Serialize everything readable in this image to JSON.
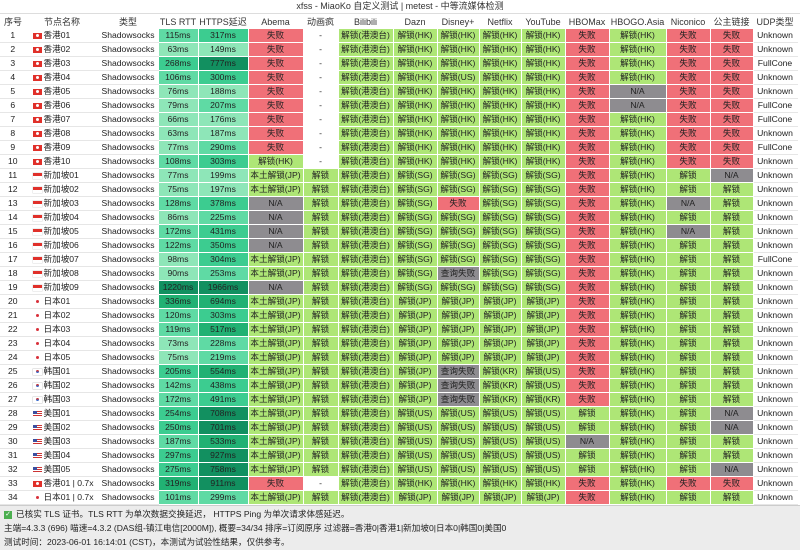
{
  "window_title": "xfss - MiaoKo 自定义测试 | metest - 中等流媒体检测",
  "colors": {
    "unlock": "#aee676",
    "fail": "#f07078",
    "na": "#8e8c90",
    "none": "#ffffff"
  },
  "columns": [
    "序号",
    "节点名称",
    "类型",
    "TLS RTT",
    "HTTPS延迟",
    "Abema",
    "动画疯",
    "Bilibili",
    "Dazn",
    "Disney+",
    "Netflix",
    "YouTube",
    "HBOMax",
    "HBOGO.Asia",
    "Niconico",
    "公主链接",
    "UDP类型"
  ],
  "rows": [
    [
      "1",
      "hk",
      "香港01",
      "Shadowsocks",
      "115ms",
      "317ms",
      "失败",
      "-",
      "解锁(港澳台)",
      "解锁(HK)",
      "解锁(HK)",
      "解锁(HK)",
      "解锁(HK)",
      "失败",
      "解锁(HK)",
      "失败",
      "失败",
      "Unknown"
    ],
    [
      "2",
      "hk",
      "香港02",
      "Shadowsocks",
      "63ms",
      "149ms",
      "失败",
      "-",
      "解锁(港澳台)",
      "解锁(HK)",
      "解锁(HK)",
      "解锁(HK)",
      "解锁(HK)",
      "失败",
      "解锁(HK)",
      "失败",
      "失败",
      "Unknown"
    ],
    [
      "3",
      "hk",
      "香港03",
      "Shadowsocks",
      "268ms",
      "777ms",
      "失败",
      "-",
      "解锁(港澳台)",
      "解锁(HK)",
      "解锁(HK)",
      "解锁(HK)",
      "解锁(HK)",
      "失败",
      "解锁(HK)",
      "失败",
      "失败",
      "FullCone"
    ],
    [
      "4",
      "hk",
      "香港04",
      "Shadowsocks",
      "106ms",
      "300ms",
      "失败",
      "-",
      "解锁(港澳台)",
      "解锁(HK)",
      "解锁(US)",
      "解锁(HK)",
      "解锁(HK)",
      "失败",
      "解锁(HK)",
      "失败",
      "失败",
      "Unknown"
    ],
    [
      "5",
      "hk",
      "香港05",
      "Shadowsocks",
      "76ms",
      "188ms",
      "失败",
      "-",
      "解锁(港澳台)",
      "解锁(HK)",
      "解锁(HK)",
      "解锁(HK)",
      "解锁(HK)",
      "失败",
      "N/A",
      "失败",
      "失败",
      "Unknown"
    ],
    [
      "6",
      "hk",
      "香港06",
      "Shadowsocks",
      "79ms",
      "207ms",
      "失败",
      "-",
      "解锁(港澳台)",
      "解锁(HK)",
      "解锁(HK)",
      "解锁(HK)",
      "解锁(HK)",
      "失败",
      "N/A",
      "失败",
      "失败",
      "FullCone"
    ],
    [
      "7",
      "hk",
      "香港07",
      "Shadowsocks",
      "66ms",
      "176ms",
      "失败",
      "-",
      "解锁(港澳台)",
      "解锁(HK)",
      "解锁(HK)",
      "解锁(HK)",
      "解锁(HK)",
      "失败",
      "解锁(HK)",
      "失败",
      "失败",
      "FullCone"
    ],
    [
      "8",
      "hk",
      "香港08",
      "Shadowsocks",
      "63ms",
      "187ms",
      "失败",
      "-",
      "解锁(港澳台)",
      "解锁(HK)",
      "解锁(HK)",
      "解锁(HK)",
      "解锁(HK)",
      "失败",
      "解锁(HK)",
      "失败",
      "失败",
      "Unknown"
    ],
    [
      "9",
      "hk",
      "香港09",
      "Shadowsocks",
      "77ms",
      "290ms",
      "失败",
      "-",
      "解锁(港澳台)",
      "解锁(HK)",
      "解锁(HK)",
      "解锁(HK)",
      "解锁(HK)",
      "失败",
      "解锁(HK)",
      "失败",
      "失败",
      "FullCone"
    ],
    [
      "10",
      "hk",
      "香港10",
      "Shadowsocks",
      "108ms",
      "303ms",
      "解锁(HK)",
      "-",
      "解锁(港澳台)",
      "解锁(HK)",
      "解锁(HK)",
      "解锁(HK)",
      "解锁(HK)",
      "失败",
      "解锁(HK)",
      "失败",
      "失败",
      "Unknown"
    ],
    [
      "11",
      "sg",
      "新加坡01",
      "Shadowsocks",
      "77ms",
      "199ms",
      "本土解锁(JP)",
      "解锁",
      "解锁(港澳台)",
      "解锁(SG)",
      "解锁(SG)",
      "解锁(SG)",
      "解锁(SG)",
      "失败",
      "解锁(HK)",
      "解锁",
      "N/A",
      "Unknown"
    ],
    [
      "12",
      "sg",
      "新加坡02",
      "Shadowsocks",
      "75ms",
      "197ms",
      "本土解锁(JP)",
      "解锁",
      "解锁(港澳台)",
      "解锁(SG)",
      "解锁(SG)",
      "解锁(SG)",
      "解锁(SG)",
      "失败",
      "解锁(HK)",
      "解锁",
      "解锁",
      "Unknown"
    ],
    [
      "13",
      "sg",
      "新加坡03",
      "Shadowsocks",
      "128ms",
      "378ms",
      "N/A",
      "解锁",
      "解锁(港澳台)",
      "解锁(SG)",
      "失败",
      "解锁(SG)",
      "解锁(SG)",
      "失败",
      "解锁(HK)",
      "N/A",
      "解锁",
      "Unknown"
    ],
    [
      "14",
      "sg",
      "新加坡04",
      "Shadowsocks",
      "86ms",
      "225ms",
      "N/A",
      "解锁",
      "解锁(港澳台)",
      "解锁(SG)",
      "解锁(SG)",
      "解锁(SG)",
      "解锁(SG)",
      "失败",
      "解锁(HK)",
      "解锁",
      "解锁",
      "Unknown"
    ],
    [
      "15",
      "sg",
      "新加坡05",
      "Shadowsocks",
      "172ms",
      "431ms",
      "N/A",
      "解锁",
      "解锁(港澳台)",
      "解锁(SG)",
      "解锁(SG)",
      "解锁(SG)",
      "解锁(SG)",
      "失败",
      "解锁(HK)",
      "N/A",
      "解锁",
      "Unknown"
    ],
    [
      "16",
      "sg",
      "新加坡06",
      "Shadowsocks",
      "122ms",
      "350ms",
      "N/A",
      "解锁",
      "解锁(港澳台)",
      "解锁(SG)",
      "解锁(SG)",
      "解锁(SG)",
      "解锁(SG)",
      "失败",
      "解锁(HK)",
      "解锁",
      "解锁",
      "Unknown"
    ],
    [
      "17",
      "sg",
      "新加坡07",
      "Shadowsocks",
      "98ms",
      "304ms",
      "本土解锁(JP)",
      "解锁",
      "解锁(港澳台)",
      "解锁(SG)",
      "解锁(SG)",
      "解锁(SG)",
      "解锁(SG)",
      "失败",
      "解锁(HK)",
      "解锁",
      "解锁",
      "FullCone"
    ],
    [
      "18",
      "sg",
      "新加坡08",
      "Shadowsocks",
      "90ms",
      "253ms",
      "本土解锁(JP)",
      "解锁",
      "解锁(港澳台)",
      "解锁(SG)",
      "查询失败",
      "解锁(SG)",
      "解锁(SG)",
      "失败",
      "解锁(HK)",
      "解锁",
      "解锁",
      "Unknown"
    ],
    [
      "19",
      "sg",
      "新加坡09",
      "Shadowsocks",
      "1220ms",
      "1966ms",
      "N/A",
      "解锁",
      "解锁(港澳台)",
      "解锁(SG)",
      "解锁(SG)",
      "解锁(SG)",
      "解锁(SG)",
      "失败",
      "解锁(HK)",
      "解锁",
      "解锁",
      "Unknown"
    ],
    [
      "20",
      "jp",
      "日本01",
      "Shadowsocks",
      "336ms",
      "694ms",
      "本土解锁(JP)",
      "解锁",
      "解锁(港澳台)",
      "解锁(JP)",
      "解锁(JP)",
      "解锁(JP)",
      "解锁(JP)",
      "失败",
      "解锁(HK)",
      "解锁",
      "解锁",
      "Unknown"
    ],
    [
      "21",
      "jp",
      "日本02",
      "Shadowsocks",
      "120ms",
      "303ms",
      "本土解锁(JP)",
      "解锁",
      "解锁(港澳台)",
      "解锁(JP)",
      "解锁(JP)",
      "解锁(JP)",
      "解锁(JP)",
      "失败",
      "解锁(HK)",
      "解锁",
      "解锁",
      "Unknown"
    ],
    [
      "22",
      "jp",
      "日本03",
      "Shadowsocks",
      "119ms",
      "517ms",
      "本土解锁(JP)",
      "解锁",
      "解锁(港澳台)",
      "解锁(JP)",
      "解锁(JP)",
      "解锁(JP)",
      "解锁(JP)",
      "失败",
      "解锁(HK)",
      "解锁",
      "解锁",
      "Unknown"
    ],
    [
      "23",
      "jp",
      "日本04",
      "Shadowsocks",
      "73ms",
      "228ms",
      "本土解锁(JP)",
      "解锁",
      "解锁(港澳台)",
      "解锁(JP)",
      "解锁(JP)",
      "解锁(JP)",
      "解锁(JP)",
      "失败",
      "解锁(HK)",
      "解锁",
      "解锁",
      "Unknown"
    ],
    [
      "24",
      "jp",
      "日本05",
      "Shadowsocks",
      "75ms",
      "219ms",
      "本土解锁(JP)",
      "解锁",
      "解锁(港澳台)",
      "解锁(JP)",
      "解锁(JP)",
      "解锁(JP)",
      "解锁(JP)",
      "失败",
      "解锁(HK)",
      "解锁",
      "解锁",
      "Unknown"
    ],
    [
      "25",
      "kr",
      "韩国01",
      "Shadowsocks",
      "205ms",
      "554ms",
      "本土解锁(JP)",
      "解锁",
      "解锁(港澳台)",
      "解锁(JP)",
      "查询失败",
      "解锁(KR)",
      "解锁(US)",
      "失败",
      "解锁(HK)",
      "解锁",
      "解锁",
      "Unknown"
    ],
    [
      "26",
      "kr",
      "韩国02",
      "Shadowsocks",
      "142ms",
      "438ms",
      "本土解锁(JP)",
      "解锁",
      "解锁(港澳台)",
      "解锁(JP)",
      "查询失败",
      "解锁(KR)",
      "解锁(US)",
      "失败",
      "解锁(HK)",
      "解锁",
      "解锁",
      "Unknown"
    ],
    [
      "27",
      "kr",
      "韩国03",
      "Shadowsocks",
      "172ms",
      "491ms",
      "本土解锁(JP)",
      "解锁",
      "解锁(港澳台)",
      "解锁(JP)",
      "查询失败",
      "解锁(KR)",
      "解锁(KR)",
      "失败",
      "解锁(HK)",
      "解锁",
      "解锁",
      "Unknown"
    ],
    [
      "28",
      "us",
      "美国01",
      "Shadowsocks",
      "254ms",
      "708ms",
      "本土解锁(JP)",
      "解锁",
      "解锁(港澳台)",
      "解锁(US)",
      "解锁(US)",
      "解锁(US)",
      "解锁(US)",
      "解锁",
      "解锁(HK)",
      "解锁",
      "N/A",
      "Unknown"
    ],
    [
      "29",
      "us",
      "美国02",
      "Shadowsocks",
      "250ms",
      "701ms",
      "本土解锁(JP)",
      "解锁",
      "解锁(港澳台)",
      "解锁(US)",
      "解锁(US)",
      "解锁(US)",
      "解锁(US)",
      "解锁",
      "解锁(HK)",
      "解锁",
      "N/A",
      "Unknown"
    ],
    [
      "30",
      "us",
      "美国03",
      "Shadowsocks",
      "187ms",
      "533ms",
      "本土解锁(JP)",
      "解锁",
      "解锁(港澳台)",
      "解锁(US)",
      "解锁(US)",
      "解锁(US)",
      "解锁(US)",
      "N/A",
      "解锁(HK)",
      "解锁",
      "解锁",
      "Unknown"
    ],
    [
      "31",
      "us",
      "美国04",
      "Shadowsocks",
      "297ms",
      "927ms",
      "本土解锁(JP)",
      "解锁",
      "解锁(港澳台)",
      "解锁(US)",
      "解锁(US)",
      "解锁(US)",
      "解锁(US)",
      "解锁",
      "解锁(HK)",
      "解锁",
      "解锁",
      "Unknown"
    ],
    [
      "32",
      "us",
      "美国05",
      "Shadowsocks",
      "275ms",
      "758ms",
      "本土解锁(JP)",
      "解锁",
      "解锁(港澳台)",
      "解锁(US)",
      "解锁(US)",
      "解锁(US)",
      "解锁(US)",
      "解锁",
      "解锁(HK)",
      "解锁",
      "N/A",
      "Unknown"
    ],
    [
      "33",
      "hk",
      "香港01 | 0.7x",
      "Shadowsocks",
      "319ms",
      "911ms",
      "失败",
      "-",
      "解锁(港澳台)",
      "解锁(HK)",
      "解锁(HK)",
      "解锁(HK)",
      "解锁(HK)",
      "失败",
      "解锁(HK)",
      "失败",
      "失败",
      "Unknown"
    ],
    [
      "34",
      "jp",
      "日本01 | 0.7x",
      "Shadowsocks",
      "101ms",
      "299ms",
      "本土解锁(JP)",
      "解锁",
      "解锁(港澳台)",
      "解锁(JP)",
      "解锁(JP)",
      "解锁(JP)",
      "解锁(JP)",
      "失败",
      "解锁(HK)",
      "解锁",
      "解锁",
      "Unknown"
    ]
  ],
  "footer": {
    "line1": "已核实 TLS 证书。TLS RTT 为单次数据交换延迟， HTTPS Ping 为单次请求体感延迟。",
    "line2": "主端=4.3.3 (696) 喵速=4.3.2 (DAS组-镇江电信[2000M]), 概要=34/34 排序=订阅原序 过滤器=香港0|香港1|新加坡0|日本0|韩国0|美国0",
    "line3": "测试时间：2023-06-01 16:14:01 (CST)，本测试为试验性结果，仅供参考。"
  }
}
